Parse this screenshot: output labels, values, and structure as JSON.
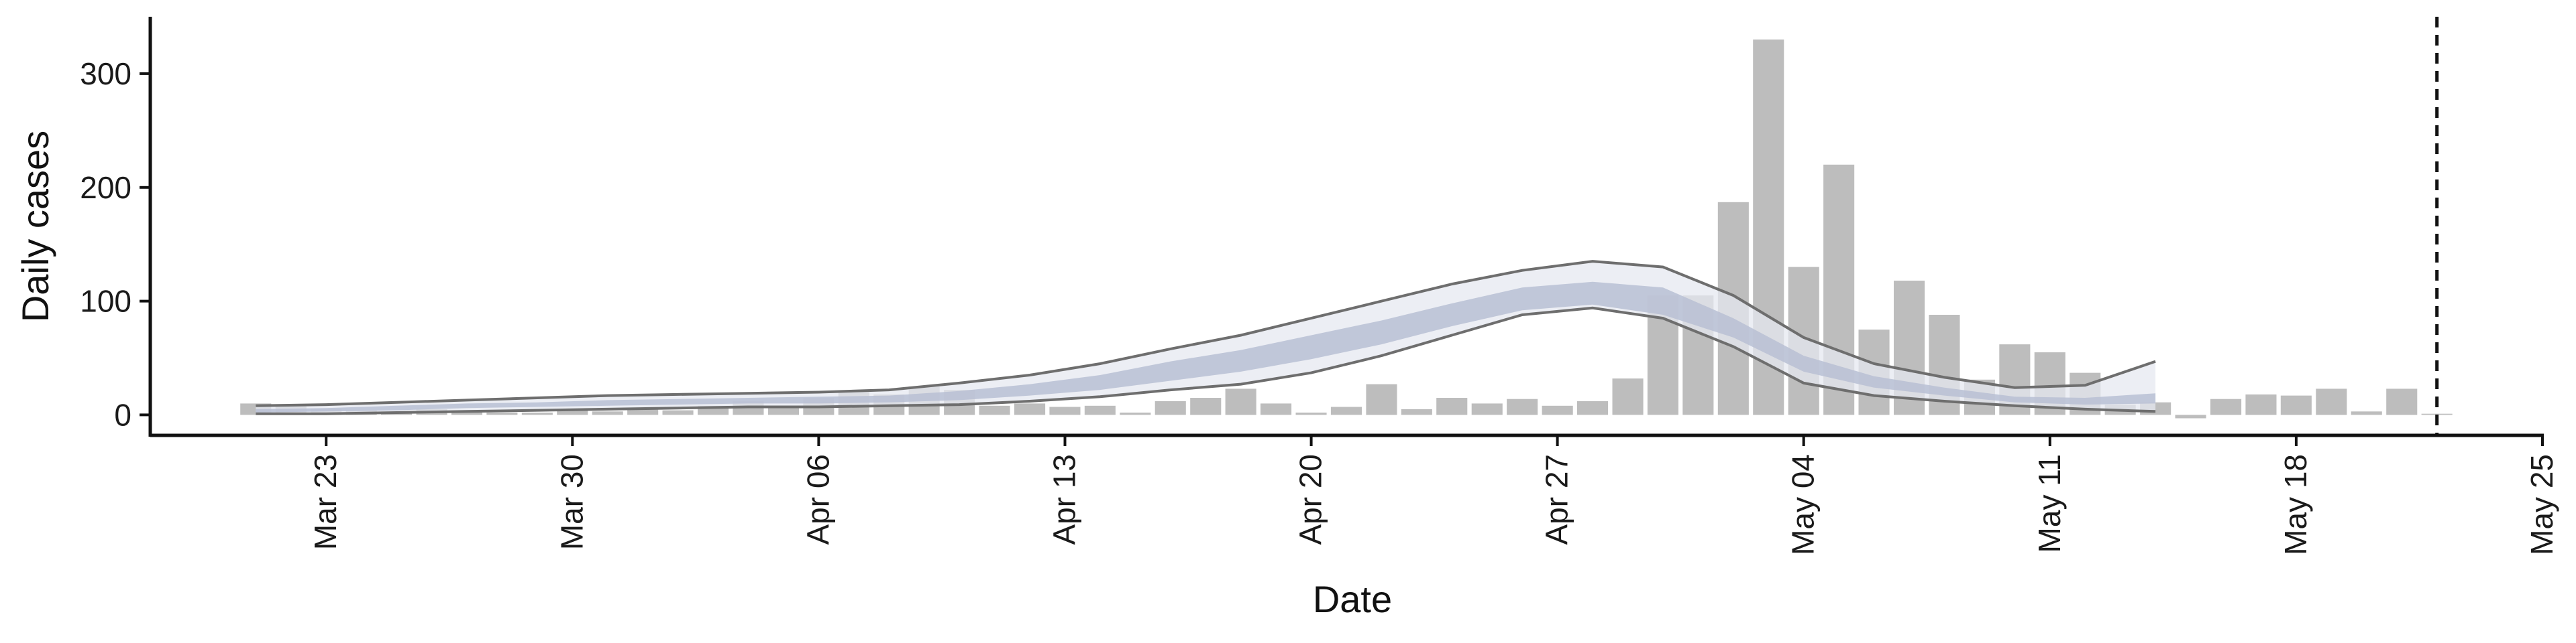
{
  "chart_data": {
    "type": "bar",
    "title": "",
    "xlabel": "Date",
    "ylabel": "Daily cases",
    "xlim": [
      "2020-03-18",
      "2020-05-25"
    ],
    "ylim": [
      -18,
      350
    ],
    "x_ticks": [
      "Mar 23",
      "Mar 30",
      "Apr 06",
      "Apr 13",
      "Apr 20",
      "Apr 27",
      "May 04",
      "May 11",
      "May 18",
      "May 25"
    ],
    "x_tick_dates": [
      "2020-03-23",
      "2020-03-30",
      "2020-04-06",
      "2020-04-13",
      "2020-04-20",
      "2020-04-27",
      "2020-05-04",
      "2020-05-11",
      "2020-05-18",
      "2020-05-25"
    ],
    "y_ticks": [
      0,
      100,
      200,
      300
    ],
    "grid": false,
    "legend": "none",
    "colors": {
      "bars": "#bdbdbd",
      "outer_band": "#e6e8f0",
      "inner_band": "#b9c0d4",
      "band_edge": "#6e6e6e",
      "vline": "#111111",
      "axis": "#111111"
    },
    "bars": {
      "dates": [
        "2020-03-21",
        "2020-03-22",
        "2020-03-23",
        "2020-03-24",
        "2020-03-25",
        "2020-03-26",
        "2020-03-27",
        "2020-03-28",
        "2020-03-29",
        "2020-03-30",
        "2020-03-31",
        "2020-04-01",
        "2020-04-02",
        "2020-04-03",
        "2020-04-04",
        "2020-04-05",
        "2020-04-06",
        "2020-04-07",
        "2020-04-08",
        "2020-04-09",
        "2020-04-10",
        "2020-04-11",
        "2020-04-12",
        "2020-04-13",
        "2020-04-14",
        "2020-04-15",
        "2020-04-16",
        "2020-04-17",
        "2020-04-18",
        "2020-04-19",
        "2020-04-20",
        "2020-04-21",
        "2020-04-22",
        "2020-04-23",
        "2020-04-24",
        "2020-04-25",
        "2020-04-26",
        "2020-04-27",
        "2020-04-28",
        "2020-04-29",
        "2020-04-30",
        "2020-05-01",
        "2020-05-02",
        "2020-05-03",
        "2020-05-04",
        "2020-05-05",
        "2020-05-06",
        "2020-05-07",
        "2020-05-08",
        "2020-05-09",
        "2020-05-10",
        "2020-05-11",
        "2020-05-12",
        "2020-05-13",
        "2020-05-14",
        "2020-05-15",
        "2020-05-16",
        "2020-05-17",
        "2020-05-18",
        "2020-05-19",
        "2020-05-20",
        "2020-05-21",
        "2020-05-22"
      ],
      "values": [
        10,
        8,
        5,
        4,
        3,
        5,
        4,
        2,
        2,
        4,
        3,
        5,
        4,
        8,
        12,
        6,
        15,
        20,
        18,
        25,
        22,
        8,
        10,
        7,
        8,
        2,
        12,
        15,
        23,
        10,
        2,
        7,
        27,
        5,
        15,
        10,
        14,
        8,
        12,
        32,
        105,
        105,
        187,
        330,
        130,
        220,
        75,
        118,
        88,
        31,
        62,
        55,
        37,
        9,
        11,
        -3,
        14,
        18,
        17,
        23,
        3,
        23,
        1
      ]
    },
    "nowcast": {
      "dates": [
        "2020-03-21",
        "2020-03-23",
        "2020-03-25",
        "2020-03-27",
        "2020-03-29",
        "2020-03-31",
        "2020-04-02",
        "2020-04-04",
        "2020-04-06",
        "2020-04-08",
        "2020-04-10",
        "2020-04-12",
        "2020-04-14",
        "2020-04-16",
        "2020-04-18",
        "2020-04-20",
        "2020-04-22",
        "2020-04-24",
        "2020-04-26",
        "2020-04-28",
        "2020-04-30",
        "2020-05-02",
        "2020-05-04",
        "2020-05-06",
        "2020-05-08",
        "2020-05-10",
        "2020-05-12",
        "2020-05-14"
      ],
      "outer_upper": [
        8,
        9,
        11,
        13,
        15,
        17,
        18,
        19,
        20,
        22,
        28,
        35,
        45,
        58,
        70,
        85,
        100,
        115,
        127,
        135,
        130,
        105,
        68,
        45,
        33,
        24,
        26,
        47
      ],
      "inner_upper": [
        5,
        6,
        8,
        10,
        11,
        13,
        14,
        15,
        16,
        17,
        21,
        27,
        35,
        47,
        57,
        70,
        83,
        98,
        112,
        117,
        112,
        85,
        52,
        34,
        24,
        16,
        15,
        19
      ],
      "inner_lower": [
        2,
        3,
        4,
        6,
        7,
        8,
        9,
        10,
        10,
        11,
        13,
        17,
        22,
        30,
        38,
        49,
        62,
        78,
        92,
        97,
        88,
        68,
        38,
        24,
        17,
        11,
        9,
        10
      ],
      "outer_lower": [
        1,
        1,
        2,
        3,
        4,
        5,
        6,
        7,
        7,
        8,
        9,
        12,
        16,
        22,
        27,
        37,
        52,
        70,
        88,
        94,
        85,
        60,
        28,
        17,
        12,
        8,
        5,
        3
      ]
    },
    "vline_date": "2020-05-22"
  }
}
